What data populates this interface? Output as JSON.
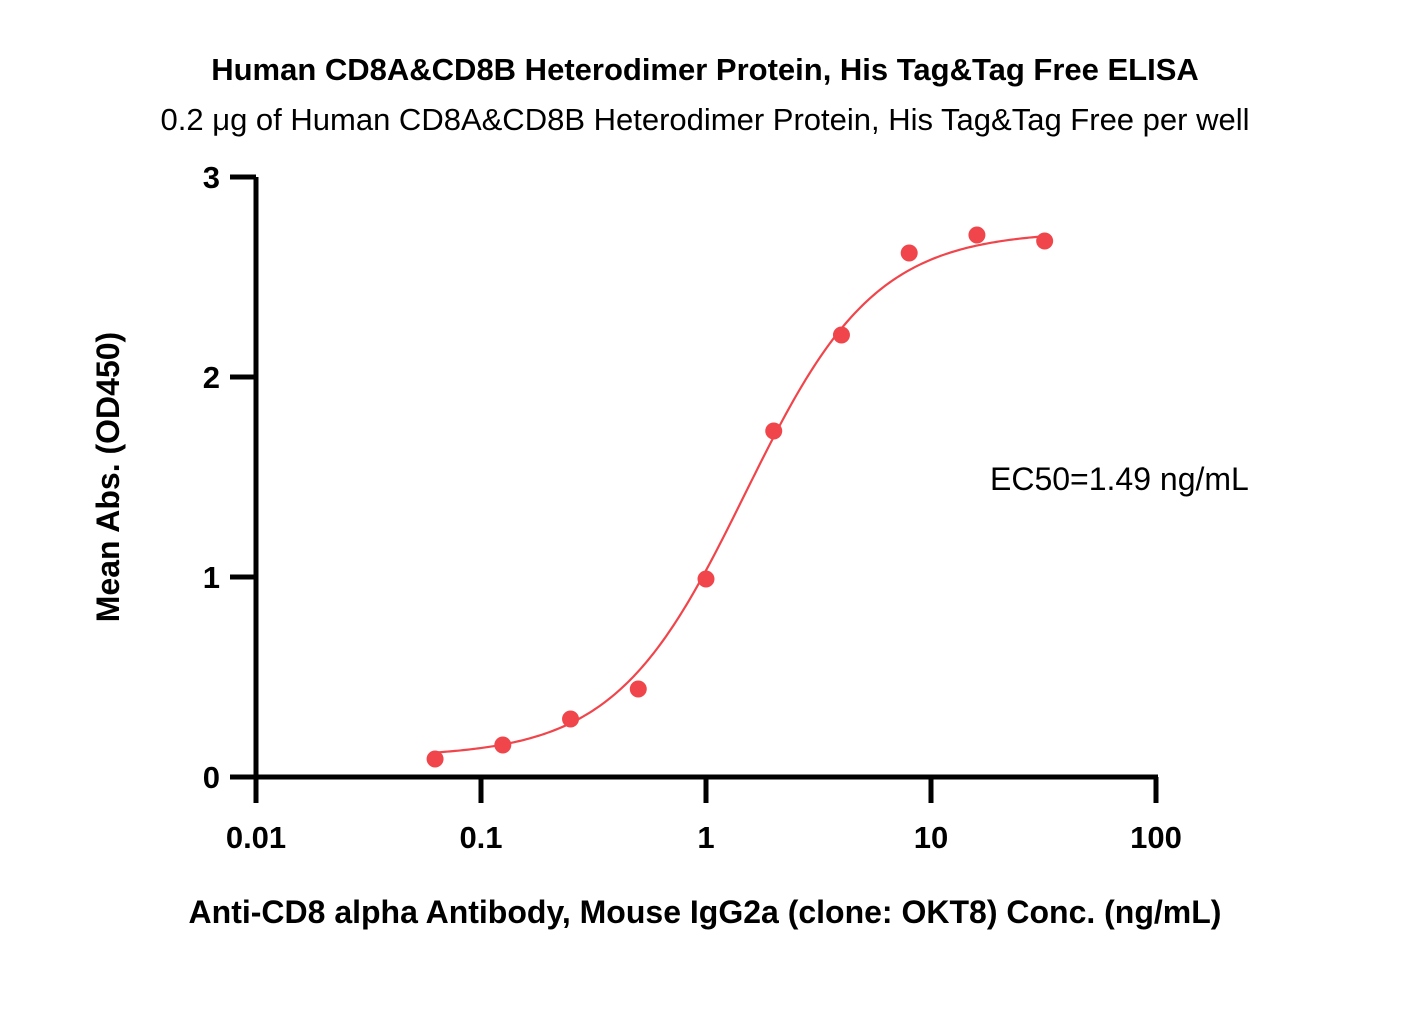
{
  "chart_data": {
    "type": "scatter",
    "title": "Human CD8A&CD8B Heterodimer Protein, His Tag&Tag Free ELISA",
    "subtitle": "0.2 μg of Human CD8A&CD8B Heterodimer Protein, His Tag&Tag Free per well",
    "xlabel": "Anti-CD8 alpha Antibody, Mouse IgG2a (clone: OKT8) Conc. (ng/mL)",
    "ylabel": "Mean Abs. (OD450)",
    "x_scale": "log",
    "xlim": [
      0.01,
      100
    ],
    "ylim": [
      0,
      3
    ],
    "x_ticks": [
      0.01,
      0.1,
      1,
      10,
      100
    ],
    "x_tick_labels": [
      "0.01",
      "0.1",
      "1",
      "10",
      "100"
    ],
    "y_ticks": [
      0,
      1,
      2,
      3
    ],
    "y_tick_labels": [
      "0",
      "1",
      "2",
      "3"
    ],
    "grid": false,
    "series": [
      {
        "x": [
          0.0625,
          0.125,
          0.25,
          0.5,
          1,
          2,
          4,
          8,
          16,
          32
        ],
        "y": [
          0.09,
          0.16,
          0.29,
          0.44,
          0.99,
          1.73,
          2.21,
          2.62,
          2.71,
          2.68
        ],
        "color": "#f0454b",
        "fit": "4PL"
      }
    ],
    "annotations": [
      {
        "text": "EC50=1.49 ng/mL"
      }
    ]
  }
}
